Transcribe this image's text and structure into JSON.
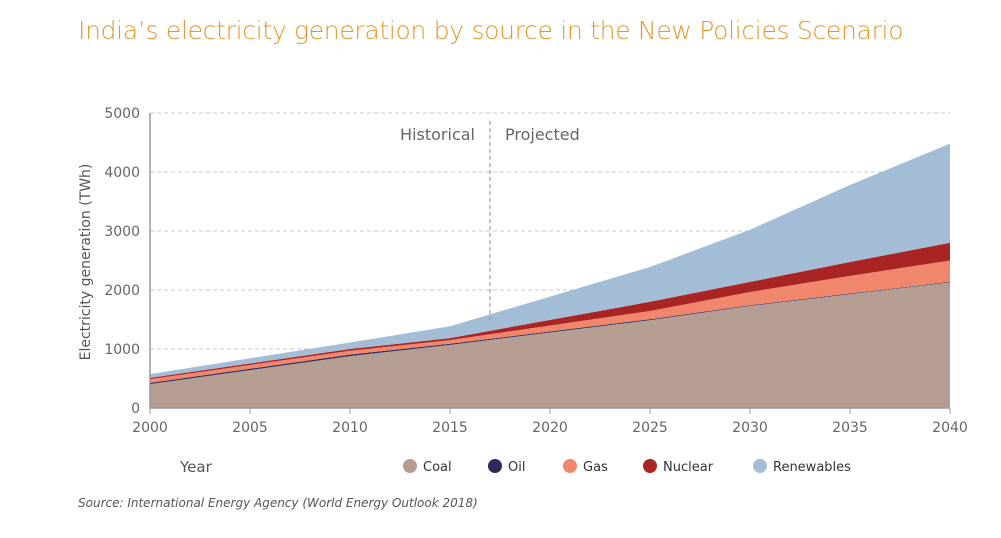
{
  "title": "India’s electricity generation by source in the New Policies Scenario",
  "source": "Source: International Energy Agency (World Energy Outlook 2018)",
  "chart_data": {
    "type": "area",
    "stacked": true,
    "title": "India’s electricity generation by source in the New Policies Scenario",
    "xlabel": "Year",
    "ylabel": "Electricity generation (TWh)",
    "xlim": [
      2000,
      2040
    ],
    "ylim": [
      0,
      5000
    ],
    "xticks": [
      2000,
      2005,
      2010,
      2015,
      2020,
      2025,
      2030,
      2035,
      2040
    ],
    "yticks": [
      0,
      1000,
      2000,
      3000,
      4000,
      5000
    ],
    "grid": "horizontal dashed",
    "legend": "bottom",
    "annotations": [
      {
        "text": "Historical",
        "side": "left"
      },
      {
        "text": "Projected",
        "side": "right"
      }
    ],
    "divider_year": 2017,
    "x": [
      2000,
      2010,
      2015,
      2025,
      2030,
      2035,
      2040
    ],
    "series": [
      {
        "name": "Coal",
        "color": "#b59d91",
        "values": [
          405,
          880,
          1070,
          1490,
          1730,
          1930,
          2130
        ]
      },
      {
        "name": "Oil",
        "color": "#2e2a5c",
        "values": [
          20,
          25,
          20,
          15,
          12,
          10,
          10
        ]
      },
      {
        "name": "Gas",
        "color": "#f0876c",
        "values": [
          65,
          65,
          60,
          140,
          225,
          300,
          360
        ]
      },
      {
        "name": "Nuclear",
        "color": "#a82524",
        "values": [
          20,
          30,
          35,
          155,
          170,
          235,
          300
        ]
      },
      {
        "name": "Renewables",
        "color": "#a3bdd6",
        "values": [
          65,
          110,
          200,
          590,
          885,
          1305,
          1680
        ]
      }
    ]
  }
}
